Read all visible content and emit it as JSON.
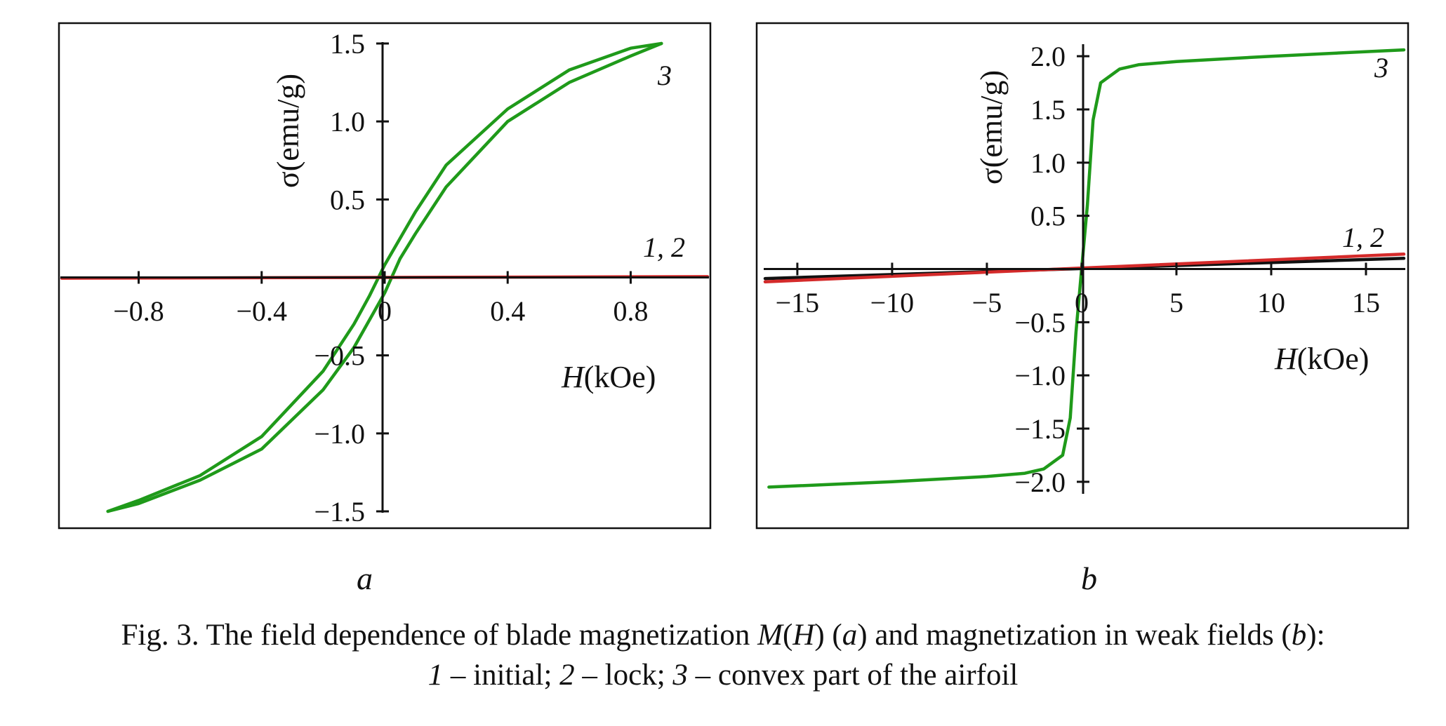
{
  "figure": {
    "panel_a_label": "a",
    "panel_b_label": "b",
    "caption_line1": {
      "a": "Fig. 3. The field dependence of blade magnetization ",
      "b": "M",
      "c": "(",
      "d": "H",
      "e": ") (",
      "f": "a",
      "g": ") and magnetization in weak fields (",
      "h": "b",
      "i": "):"
    },
    "caption_line2": {
      "a": "1",
      "b": " – initial; ",
      "c": "2",
      "d": " – lock; ",
      "e": "3",
      "f": " – convex part of the airfoil"
    }
  },
  "colors": {
    "green": "#1f9a1a",
    "red": "#d42a2a",
    "black": "#111111"
  },
  "chart_data": [
    {
      "id": "a",
      "type": "line",
      "xlabel_prefix": "H",
      "xlabel_suffix": "(kOe)",
      "ylabel": "σ(emu/g)",
      "xlim": [
        -1.05,
        1.05
      ],
      "ylim": [
        -1.5,
        1.5
      ],
      "xticks": [
        {
          "v": -0.8,
          "t": "−0.8"
        },
        {
          "v": -0.4,
          "t": "−0.4"
        },
        {
          "v": 0,
          "t": "0"
        },
        {
          "v": 0.4,
          "t": "0.4"
        },
        {
          "v": 0.8,
          "t": "0.8"
        }
      ],
      "yticks": [
        {
          "v": 1.5,
          "t": "1.5"
        },
        {
          "v": 1.0,
          "t": "1.0"
        },
        {
          "v": 0.5,
          "t": "0.5"
        },
        {
          "v": -0.5,
          "t": "−0.5"
        },
        {
          "v": -1.0,
          "t": "−1.0"
        },
        {
          "v": -1.5,
          "t": "−1.5"
        }
      ],
      "series": [
        {
          "label": "3",
          "color": "#1f9a1a",
          "x": [
            -0.9,
            -0.8,
            -0.6,
            -0.4,
            -0.2,
            -0.1,
            0.0,
            0.05,
            0.1,
            0.2,
            0.4,
            0.6,
            0.8,
            0.9
          ],
          "y": [
            -1.5,
            -1.45,
            -1.3,
            -1.1,
            -0.72,
            -0.45,
            -0.1,
            0.12,
            0.28,
            0.58,
            1.0,
            1.25,
            1.42,
            1.5
          ]
        },
        {
          "label": "",
          "color": "#1f9a1a",
          "x": [
            0.9,
            0.8,
            0.6,
            0.4,
            0.2,
            0.1,
            0.0,
            -0.05,
            -0.1,
            -0.2,
            -0.4,
            -0.6,
            -0.8,
            -0.9
          ],
          "y": [
            1.5,
            1.47,
            1.33,
            1.08,
            0.72,
            0.42,
            0.08,
            -0.12,
            -0.3,
            -0.6,
            -1.02,
            -1.27,
            -1.43,
            -1.5
          ]
        },
        {
          "label": "1, 2",
          "color": "#d42a2a",
          "x": [
            -1.05,
            1.05
          ],
          "y": [
            -0.005,
            0.005
          ]
        }
      ],
      "curve_label_3": "3",
      "curve_label_12": "1, 2"
    },
    {
      "id": "b",
      "type": "line",
      "xlabel_prefix": "H",
      "xlabel_suffix": "(kOe)",
      "ylabel": "σ(emu/g)",
      "xlim": [
        -16.7,
        17.0
      ],
      "ylim": [
        -2.1,
        2.1
      ],
      "xticks": [
        {
          "v": -15,
          "t": "−15"
        },
        {
          "v": -10,
          "t": "−10"
        },
        {
          "v": -5,
          "t": "−5"
        },
        {
          "v": 0,
          "t": "0"
        },
        {
          "v": 5,
          "t": "5"
        },
        {
          "v": 10,
          "t": "10"
        },
        {
          "v": 15,
          "t": "15"
        }
      ],
      "yticks": [
        {
          "v": 2.0,
          "t": "2.0"
        },
        {
          "v": 1.5,
          "t": "1.5"
        },
        {
          "v": 1.0,
          "t": "1.0"
        },
        {
          "v": 0.5,
          "t": "0.5"
        },
        {
          "v": -0.5,
          "t": "−0.5"
        },
        {
          "v": -1.0,
          "t": "−1.0"
        },
        {
          "v": -1.5,
          "t": "−1.5"
        },
        {
          "v": -2.0,
          "t": "−2.0"
        }
      ],
      "series": [
        {
          "label": "3",
          "color": "#1f9a1a",
          "x": [
            -16.5,
            -10,
            -5,
            -3,
            -2,
            -1,
            -0.6,
            -0.3,
            0,
            0.3,
            0.6,
            1,
            2,
            3,
            5,
            10,
            17
          ],
          "y": [
            -2.05,
            -2.0,
            -1.95,
            -1.92,
            -1.88,
            -1.75,
            -1.4,
            -0.6,
            0.0,
            0.6,
            1.4,
            1.75,
            1.88,
            1.92,
            1.95,
            2.0,
            2.06
          ]
        },
        {
          "label": "1",
          "color": "#111111",
          "x": [
            -16.7,
            17.0
          ],
          "y": [
            -0.09,
            0.1
          ]
        },
        {
          "label": "2",
          "color": "#d42a2a",
          "x": [
            -16.7,
            17.0
          ],
          "y": [
            -0.12,
            0.14
          ]
        }
      ],
      "curve_label_3": "3",
      "curve_label_12": "1, 2"
    }
  ]
}
